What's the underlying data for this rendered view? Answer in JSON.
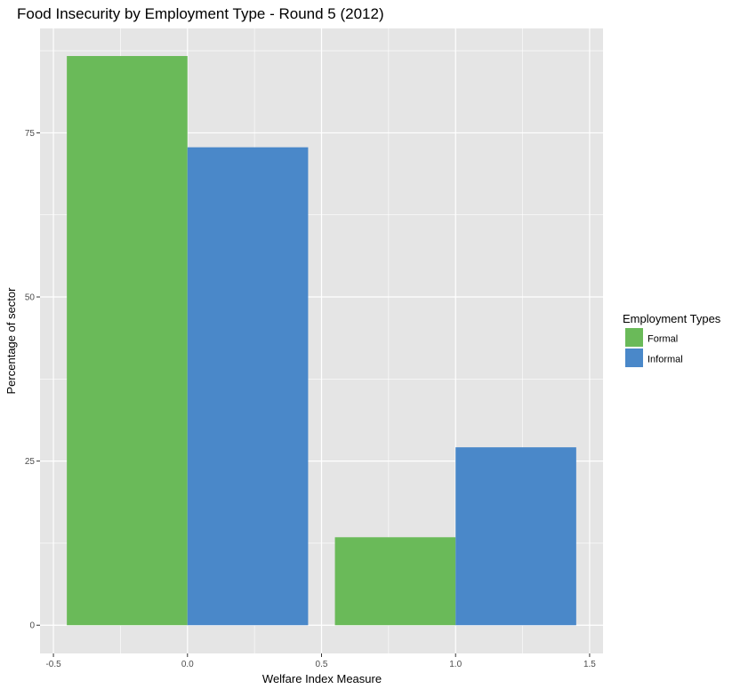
{
  "chart_data": {
    "type": "bar",
    "title": "Food Insecurity by Employment Type - Round 5 (2012)",
    "xlabel": "Welfare Index Measure",
    "ylabel": "Percentage of sector",
    "x": [
      0,
      1
    ],
    "series": [
      {
        "name": "Formal",
        "color": "#6aba59",
        "values": [
          86.7,
          13.4
        ]
      },
      {
        "name": "Informal",
        "color": "#4a88c9",
        "values": [
          72.8,
          27.1
        ]
      }
    ],
    "bar_width": 0.9,
    "xlim": [
      -0.55,
      1.55
    ],
    "ylim": [
      -4.3,
      90.9
    ],
    "x_ticks": [
      -0.5,
      0.0,
      0.5,
      1.0,
      1.5
    ],
    "x_tick_labels": [
      "-0.5",
      "0.0",
      "0.5",
      "1.0",
      "1.5"
    ],
    "y_ticks": [
      0,
      25,
      50,
      75
    ],
    "y_tick_labels": [
      "0",
      "25",
      "50",
      "75"
    ],
    "grid": true,
    "legend": {
      "title": "Employment Types",
      "position": "right"
    },
    "colors": {
      "panel": "#e5e5e5",
      "grid": "#ffffff"
    }
  }
}
